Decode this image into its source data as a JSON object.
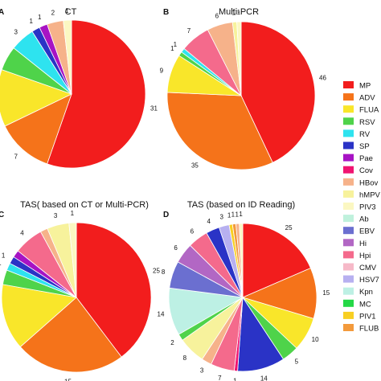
{
  "legend": [
    {
      "name": "MP",
      "color": "#f21d1d"
    },
    {
      "name": "ADV",
      "color": "#f5731a"
    },
    {
      "name": "FLUA",
      "color": "#f9e62a"
    },
    {
      "name": "RSV",
      "color": "#4fd34a"
    },
    {
      "name": "RV",
      "color": "#2ee3ef"
    },
    {
      "name": "SP",
      "color": "#2a33c6"
    },
    {
      "name": "Pae",
      "color": "#a713c4"
    },
    {
      "name": "Cov",
      "color": "#f01471"
    },
    {
      "name": "HBov",
      "color": "#f6b28a"
    },
    {
      "name": "hMPV",
      "color": "#f7f29c"
    },
    {
      "name": "PIV3",
      "color": "#fbf7c2"
    },
    {
      "name": "Ab",
      "color": "#bff1dc"
    },
    {
      "name": "EBV",
      "color": "#6b6fd0"
    },
    {
      "name": "Hi",
      "color": "#b267c4"
    },
    {
      "name": "Hpi",
      "color": "#f46a8c"
    },
    {
      "name": "CMV",
      "color": "#f6b9c8"
    },
    {
      "name": "HSV7",
      "color": "#b7b0f0"
    },
    {
      "name": "Kpn",
      "color": "#bdf0e4"
    },
    {
      "name": "MC",
      "color": "#24d846"
    },
    {
      "name": "PIV1",
      "color": "#f8cf22"
    },
    {
      "name": "FLUB",
      "color": "#f39a3c"
    }
  ],
  "chart_data": [
    {
      "type": "pie",
      "panel": "A",
      "title": "CT",
      "slices": [
        {
          "name": "MP",
          "value": 31
        },
        {
          "name": "ADV",
          "value": 7
        },
        {
          "name": "FLUA",
          "value": 7
        },
        {
          "name": "RSV",
          "value": 3
        },
        {
          "name": "RV",
          "value": 3
        },
        {
          "name": "SP",
          "value": 1
        },
        {
          "name": "Pae",
          "value": 1
        },
        {
          "name": "HBov",
          "value": 2
        },
        {
          "name": "PIV3",
          "value": 1
        }
      ],
      "labels": [
        "31",
        "7",
        "",
        "3",
        "3",
        "1",
        "1",
        "2",
        "1"
      ]
    },
    {
      "type": "pie",
      "panel": "B",
      "title": "Multi-PCR",
      "slices": [
        {
          "name": "MP",
          "value": 46
        },
        {
          "name": "ADV",
          "value": 35
        },
        {
          "name": "FLUA",
          "value": 9
        },
        {
          "name": "RSV",
          "value": 1
        },
        {
          "name": "RV",
          "value": 1
        },
        {
          "name": "Hpi",
          "value": 7
        },
        {
          "name": "HBov",
          "value": 6
        },
        {
          "name": "hMPV",
          "value": 1
        },
        {
          "name": "PIV3",
          "value": 1
        }
      ],
      "labels": [
        "46",
        "35",
        "9",
        "1",
        "1",
        "7",
        "6",
        "1",
        "1"
      ]
    },
    {
      "type": "pie",
      "panel": "C",
      "title": "TAS( based on CT or Multi-PCR)",
      "slices": [
        {
          "name": "MP",
          "value": 25
        },
        {
          "name": "ADV",
          "value": 15
        },
        {
          "name": "FLUA",
          "value": 9
        },
        {
          "name": "RSV",
          "value": 2
        },
        {
          "name": "RV",
          "value": 1
        },
        {
          "name": "SP",
          "value": 1
        },
        {
          "name": "Pae",
          "value": 1
        },
        {
          "name": "Hpi",
          "value": 4
        },
        {
          "name": "HBov",
          "value": 1
        },
        {
          "name": "hMPV",
          "value": 3
        },
        {
          "name": "PIV3",
          "value": 1
        }
      ],
      "labels": [
        "25",
        "15",
        "",
        "",
        "1",
        "1",
        "",
        "4",
        "",
        "3",
        "1"
      ]
    },
    {
      "type": "pie",
      "panel": "D",
      "title": "TAS (based on ID Reading)",
      "slices": [
        {
          "name": "MP",
          "value": 25
        },
        {
          "name": "ADV",
          "value": 15
        },
        {
          "name": "FLUA",
          "value": 10
        },
        {
          "name": "RSV",
          "value": 5
        },
        {
          "name": "SP",
          "value": 14
        },
        {
          "name": "Cov",
          "value": 1
        },
        {
          "name": "Hpi",
          "value": 7
        },
        {
          "name": "HBov",
          "value": 3
        },
        {
          "name": "hMPV",
          "value": 8
        },
        {
          "name": "RSV",
          "value": 2
        },
        {
          "name": "Kpn",
          "value": 14
        },
        {
          "name": "EBV",
          "value": 8
        },
        {
          "name": "Hi",
          "value": 6
        },
        {
          "name": "Hpi",
          "value": 6
        },
        {
          "name": "SP",
          "value": 4
        },
        {
          "name": "HSV7",
          "value": 3
        },
        {
          "name": "PIV1",
          "value": 1
        },
        {
          "name": "FLUB",
          "value": 1
        },
        {
          "name": "HBov",
          "value": 1
        },
        {
          "name": "PIV3",
          "value": 1
        }
      ],
      "labels": [
        "25",
        "15",
        "10",
        "5",
        "14",
        "1",
        "7",
        "3",
        "8",
        "2",
        "14",
        "8",
        "6",
        "6",
        "4",
        "3",
        "1",
        "1",
        "1",
        "1"
      ]
    }
  ]
}
